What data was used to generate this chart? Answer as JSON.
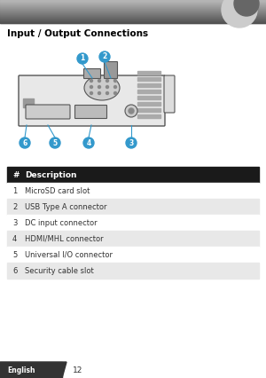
{
  "title": "Input / Output Connections",
  "title_fontsize": 7.5,
  "title_bold": true,
  "bg_color": "#ffffff",
  "header_bg": "#1a1a1a",
  "header_text": "#ffffff",
  "header_label": "#",
  "header_desc": "Description",
  "header_fontsize": 6.5,
  "row_alt_color": "#e8e8e8",
  "row_white_color": "#ffffff",
  "table_rows": [
    {
      "num": "1",
      "desc": "MicroSD card slot"
    },
    {
      "num": "2",
      "desc": "USB Type A connector"
    },
    {
      "num": "3",
      "desc": "DC input connector"
    },
    {
      "num": "4",
      "desc": "HDMI/MHL connector"
    },
    {
      "num": "5",
      "desc": "Universal I/O connector"
    },
    {
      "num": "6",
      "desc": "Security cable slot"
    }
  ],
  "table_fontsize": 6.0,
  "callout_color": "#3399cc",
  "callout_fontsize": 5.5,
  "footer_bg": "#333333",
  "footer_text": "#ffffff",
  "footer_label": "English",
  "footer_page": "12",
  "footer_fontsize": 5.5,
  "top_bar_color": "#888888",
  "diagram_bg": "#f0f0f0",
  "diagram_border": "#aaaaaa"
}
